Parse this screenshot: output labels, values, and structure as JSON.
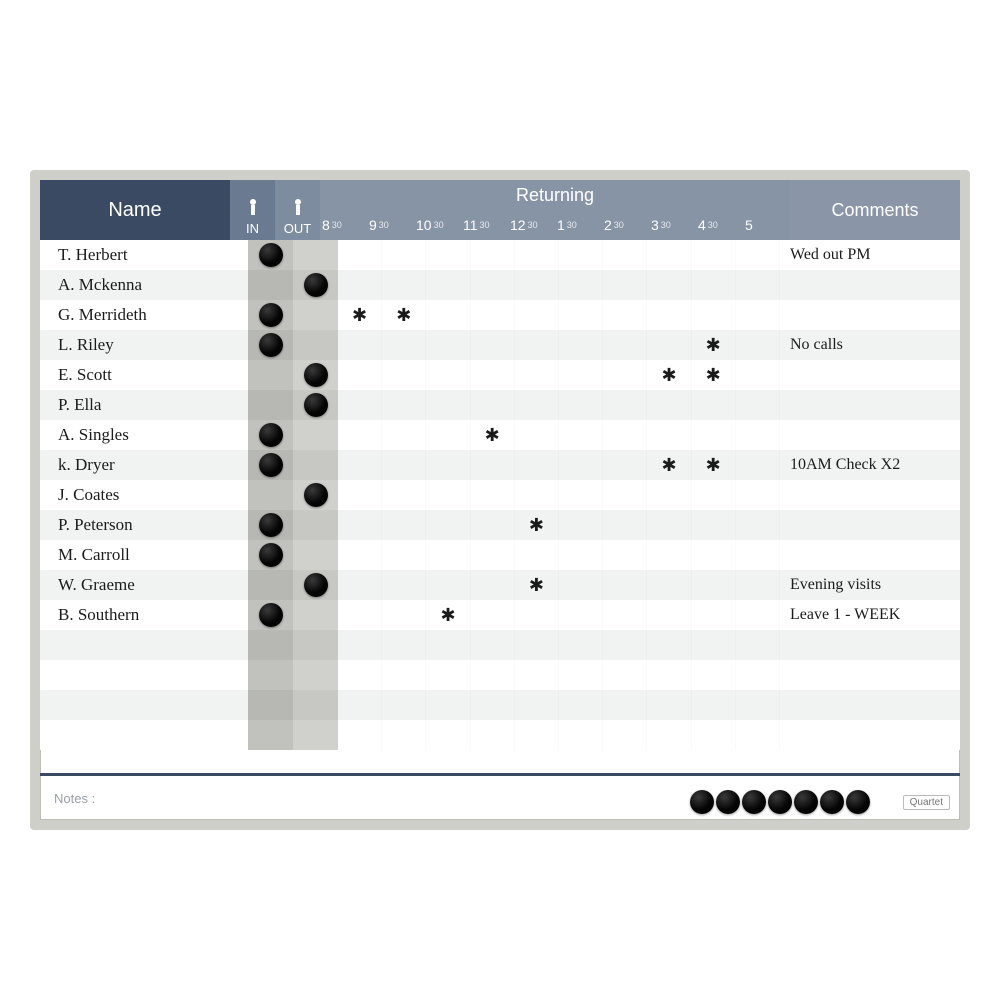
{
  "header": {
    "name": "Name",
    "in": "IN",
    "out": "OUT",
    "returning": "Returning",
    "comments": "Comments",
    "hours": [
      "8",
      "9",
      "10",
      "11",
      "12",
      "1",
      "2",
      "3",
      "4",
      "5"
    ],
    "half": "30"
  },
  "footer": {
    "notes": "Notes :",
    "brand": "Quartet"
  },
  "spare_magnets": 7,
  "hour_columns": 10,
  "colors": {
    "frame": "#cfcfca",
    "name_bg": "#3a4a63",
    "ret_bg": "#8794a6",
    "in_col": "#c1c1bd",
    "out_col": "#d0d0cc",
    "magnet": "#050505",
    "text": "#1b1b1b"
  },
  "rows": [
    {
      "name": "T. Herbert",
      "status": "in",
      "marks": [],
      "comment": "Wed out PM"
    },
    {
      "name": "A. Mckenna",
      "status": "out",
      "marks": [],
      "comment": ""
    },
    {
      "name": "G. Merrideth",
      "status": "in",
      "marks": [
        1,
        2
      ],
      "comment": ""
    },
    {
      "name": "L. Riley",
      "status": "in",
      "marks": [
        9
      ],
      "comment": "No calls"
    },
    {
      "name": "E. Scott",
      "status": "out",
      "marks": [
        8,
        9
      ],
      "comment": ""
    },
    {
      "name": "P. Ella",
      "status": "out",
      "marks": [],
      "comment": ""
    },
    {
      "name": "A. Singles",
      "status": "in",
      "marks": [
        4
      ],
      "comment": ""
    },
    {
      "name": "k. Dryer",
      "status": "in",
      "marks": [
        8,
        9
      ],
      "comment": "10AM Check X2"
    },
    {
      "name": "J. Coates",
      "status": "out",
      "marks": [],
      "comment": ""
    },
    {
      "name": "P. Peterson",
      "status": "in",
      "marks": [
        5
      ],
      "comment": ""
    },
    {
      "name": "M. Carroll",
      "status": "in",
      "marks": [],
      "comment": ""
    },
    {
      "name": "W. Graeme",
      "status": "out",
      "marks": [
        5
      ],
      "comment": "Evening visits"
    },
    {
      "name": "B. Southern",
      "status": "in",
      "marks": [
        3
      ],
      "comment": "Leave 1 - WEEK"
    }
  ]
}
